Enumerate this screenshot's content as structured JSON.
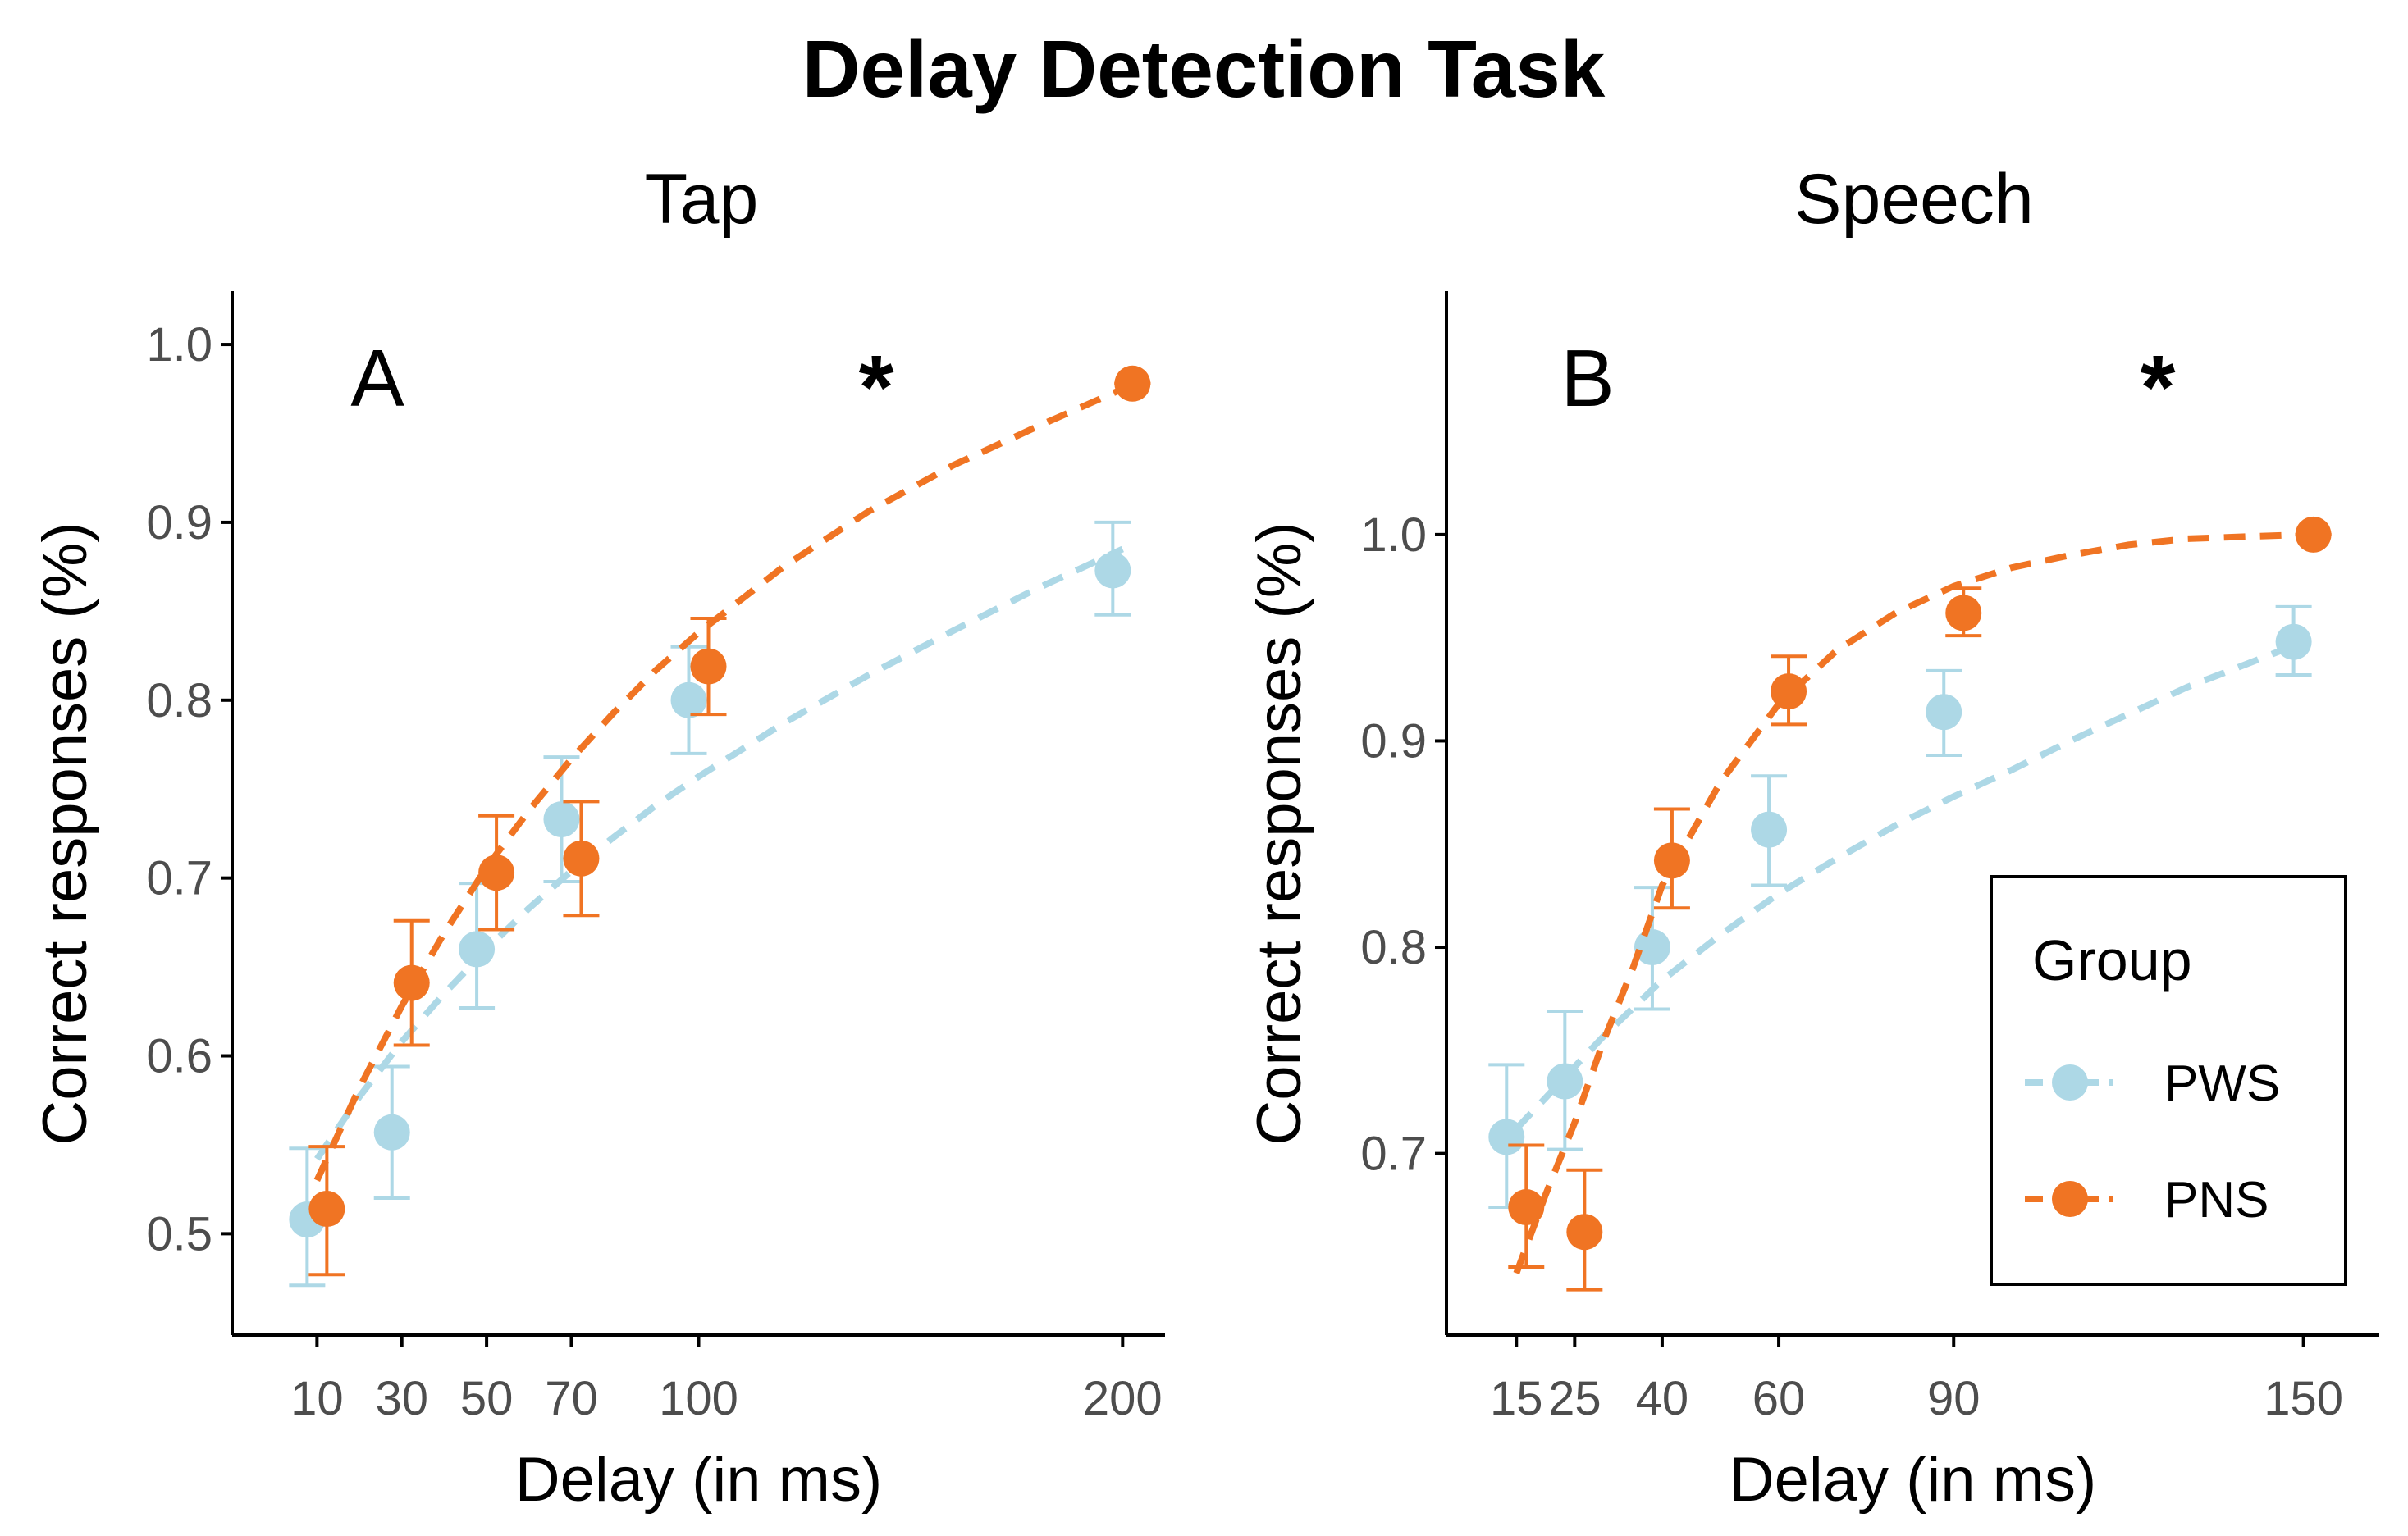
{
  "figure_title": "Delay Detection Task",
  "colors": {
    "PWS": "#add8e6",
    "PNS": "#f07423",
    "axis": "#000000",
    "tick_text": "#4d4d4d"
  },
  "legend": {
    "title": "Group",
    "entries": [
      "PWS",
      "PNS"
    ]
  },
  "chart_data": [
    {
      "type": "scatter",
      "panel_title": "Tap",
      "panel_letter": "A",
      "significance": "*",
      "xlabel": "Delay (in ms)",
      "ylabel": "Correct responses (%)",
      "xlim": [
        -10,
        210
      ],
      "ylim": [
        0.443,
        1.03
      ],
      "xticks": [
        10,
        30,
        50,
        70,
        100,
        200
      ],
      "yticks": [
        0.5,
        0.6,
        0.7,
        0.8,
        0.9,
        1.0
      ],
      "ytick_labels": [
        "0.5",
        "0.6",
        "0.7",
        "0.8",
        "0.9",
        "1.0"
      ],
      "series": [
        {
          "name": "PWS",
          "x": [
            10,
            30,
            50,
            70,
            100,
            200
          ],
          "y": [
            0.508,
            0.557,
            0.66,
            0.733,
            0.8,
            0.873
          ],
          "ylow": [
            0.471,
            0.52,
            0.627,
            0.698,
            0.77,
            0.848
          ],
          "yhigh": [
            0.548,
            0.594,
            0.697,
            0.768,
            0.83,
            0.9
          ],
          "fit_x": [
            10,
            20,
            30,
            40,
            50,
            60,
            70,
            80,
            90,
            100,
            120,
            140,
            160,
            180,
            200
          ],
          "fit_y": [
            0.542,
            0.577,
            0.608,
            0.635,
            0.66,
            0.683,
            0.704,
            0.723,
            0.741,
            0.757,
            0.787,
            0.814,
            0.839,
            0.863,
            0.885
          ]
        },
        {
          "name": "PNS",
          "x": [
            10,
            30,
            50,
            70,
            100,
            200
          ],
          "y": [
            0.514,
            0.641,
            0.703,
            0.711,
            0.819,
            0.978
          ],
          "ylow": [
            0.477,
            0.606,
            0.671,
            0.679,
            0.792,
            0.978
          ],
          "yhigh": [
            0.549,
            0.676,
            0.735,
            0.743,
            0.846,
            0.978
          ],
          "fit_x": [
            10,
            20,
            30,
            40,
            50,
            60,
            70,
            80,
            90,
            100,
            120,
            140,
            160,
            180,
            200
          ],
          "fit_y": [
            0.53,
            0.582,
            0.628,
            0.669,
            0.706,
            0.738,
            0.767,
            0.793,
            0.817,
            0.838,
            0.875,
            0.906,
            0.932,
            0.954,
            0.975
          ]
        }
      ]
    },
    {
      "type": "scatter",
      "panel_title": "Speech",
      "panel_letter": "B",
      "significance": "*",
      "xlabel": "Delay (in ms)",
      "ylabel": "Correct responses (%)",
      "xlim": [
        3,
        163
      ],
      "ylim": [
        0.612,
        1.118
      ],
      "xticks": [
        15,
        25,
        40,
        60,
        90,
        150
      ],
      "xtick_labels": [
        "15",
        "25",
        "40",
        "60",
        "90",
        "150"
      ],
      "yticks": [
        0.7,
        0.8,
        0.9,
        1.0
      ],
      "ytick_labels": [
        "0.7",
        "0.8",
        "0.9",
        "1.0"
      ],
      "series": [
        {
          "name": "PWS",
          "x": [
            15,
            25,
            40,
            60,
            90,
            150
          ],
          "y": [
            0.708,
            0.735,
            0.8,
            0.857,
            0.914,
            0.948
          ],
          "ylow": [
            0.674,
            0.702,
            0.77,
            0.83,
            0.893,
            0.932
          ],
          "yhigh": [
            0.743,
            0.769,
            0.829,
            0.883,
            0.934,
            0.965
          ],
          "fit_x": [
            15,
            20,
            25,
            30,
            40,
            50,
            60,
            70,
            80,
            90,
            100,
            110,
            120,
            130,
            140,
            150
          ],
          "fit_y": [
            0.712,
            0.727,
            0.742,
            0.757,
            0.784,
            0.806,
            0.826,
            0.843,
            0.859,
            0.873,
            0.886,
            0.9,
            0.913,
            0.926,
            0.937,
            0.948
          ]
        },
        {
          "name": "PNS",
          "x": [
            15,
            25,
            40,
            60,
            90,
            150
          ],
          "y": [
            0.674,
            0.662,
            0.842,
            0.924,
            0.962,
            1.0
          ],
          "ylow": [
            0.645,
            0.634,
            0.819,
            0.908,
            0.951,
            1.0
          ],
          "yhigh": [
            0.704,
            0.692,
            0.867,
            0.941,
            0.974,
            1.0
          ],
          "fit_x": [
            15,
            20,
            25,
            30,
            35,
            40,
            50,
            60,
            70,
            80,
            90,
            100,
            110,
            120,
            130,
            140,
            150
          ],
          "fit_y": [
            0.642,
            0.68,
            0.715,
            0.755,
            0.79,
            0.83,
            0.88,
            0.918,
            0.944,
            0.962,
            0.975,
            0.984,
            0.99,
            0.995,
            0.998,
            0.999,
            1.0
          ]
        }
      ]
    }
  ]
}
